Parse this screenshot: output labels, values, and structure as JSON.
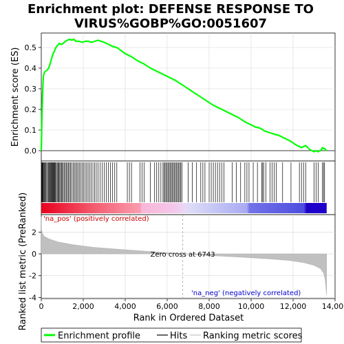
{
  "chart_data": {
    "type": "line",
    "title_lines": [
      "Enrichment plot: DEFENSE RESPONSE TO",
      "VIRUS%GOBP%GO:0051607"
    ],
    "xlabel": "Rank in Ordered Dataset",
    "ylabel_top": "Enrichment score (ES)",
    "ylabel_bottom": "Ranked list metric (PreRanked)",
    "x_range": [
      0,
      14000
    ],
    "x_ticks": [
      0,
      2000,
      4000,
      6000,
      8000,
      10000,
      12000,
      14000
    ],
    "x_tick_labels": [
      "0",
      "2,000",
      "4,000",
      "6,000",
      "8,000",
      "10,000",
      "12,000",
      "14,000"
    ],
    "es_range": [
      -0.05,
      0.57
    ],
    "es_ticks": [
      0.0,
      0.1,
      0.2,
      0.3,
      0.4,
      0.5
    ],
    "es_tick_labels": [
      "0.0",
      "0.1",
      "0.2",
      "0.3",
      "0.4",
      "0.5"
    ],
    "metric_range": [
      -4.1,
      3.6
    ],
    "metric_ticks": [
      -4,
      -2,
      0,
      2
    ],
    "metric_tick_labels": [
      "-4",
      "-2",
      "0",
      "2"
    ],
    "dataset_size": 13600,
    "zero_cross_rank": 6743,
    "zero_cross_label": "Zero cross at 6743",
    "pos_label": "'na_pos' (positively correlated)",
    "neg_label": "'na_neg' (negatively correlated)",
    "series": [
      {
        "name": "Enrichment profile",
        "color": "#00ff00",
        "x": [
          0,
          30,
          60,
          100,
          150,
          200,
          280,
          350,
          420,
          500,
          560,
          620,
          700,
          780,
          850,
          950,
          1050,
          1150,
          1250,
          1350,
          1450,
          1550,
          1650,
          1800,
          1950,
          2100,
          2250,
          2400,
          2550,
          2700,
          2850,
          3000,
          3200,
          3400,
          3600,
          3800,
          4000,
          4300,
          4600,
          4900,
          5200,
          5500,
          5800,
          6100,
          6400,
          6700,
          7000,
          7300,
          7600,
          7900,
          8200,
          8500,
          8800,
          9100,
          9400,
          9700,
          10000,
          10200,
          10400,
          10500,
          10650,
          10800,
          10950,
          11100,
          11300,
          11500,
          11700,
          11900,
          12100,
          12300,
          12400,
          12500,
          12600,
          12700,
          12800,
          12900,
          13000,
          13100,
          13200,
          13300,
          13350,
          13400,
          13450,
          13500,
          13550,
          13600
        ],
        "y": [
          0.0,
          0.15,
          0.27,
          0.36,
          0.38,
          0.385,
          0.39,
          0.4,
          0.42,
          0.45,
          0.47,
          0.48,
          0.5,
          0.51,
          0.52,
          0.515,
          0.52,
          0.53,
          0.535,
          0.54,
          0.535,
          0.54,
          0.53,
          0.53,
          0.525,
          0.53,
          0.53,
          0.525,
          0.53,
          0.535,
          0.53,
          0.525,
          0.515,
          0.505,
          0.5,
          0.485,
          0.47,
          0.455,
          0.435,
          0.42,
          0.4,
          0.385,
          0.37,
          0.355,
          0.34,
          0.32,
          0.3,
          0.28,
          0.26,
          0.24,
          0.22,
          0.205,
          0.19,
          0.175,
          0.16,
          0.14,
          0.125,
          0.115,
          0.11,
          0.105,
          0.095,
          0.09,
          0.085,
          0.08,
          0.075,
          0.065,
          0.055,
          0.045,
          0.03,
          0.02,
          0.015,
          0.02,
          0.025,
          0.015,
          0.005,
          0.0,
          -0.005,
          0.0,
          -0.005,
          0.0,
          0.005,
          0.015,
          0.01,
          0.01,
          0.005,
          0.0
        ]
      }
    ],
    "hits": [
      20,
      40,
      60,
      90,
      120,
      150,
      180,
      220,
      260,
      300,
      340,
      380,
      410,
      440,
      470,
      500,
      530,
      560,
      590,
      620,
      650,
      680,
      720,
      760,
      800,
      840,
      880,
      920,
      960,
      1000,
      1050,
      1100,
      1150,
      1200,
      1250,
      1300,
      1350,
      1400,
      1460,
      1520,
      1580,
      1640,
      1700,
      1760,
      1820,
      1880,
      1950,
      2020,
      2090,
      2160,
      2230,
      2300,
      2380,
      2460,
      2540,
      2620,
      2700,
      2800,
      2900,
      3000,
      3100,
      3200,
      3300,
      3400,
      3500,
      3600,
      4100,
      4200,
      4300,
      4700,
      4800,
      4900,
      5200,
      5400,
      5500,
      5600,
      5700,
      5800,
      5850,
      5900,
      5950,
      6000,
      6050,
      6100,
      6150,
      6200,
      6250,
      6300,
      6350,
      6400,
      6450,
      6500,
      6550,
      6600,
      6650,
      6700,
      7000,
      7200,
      7400,
      7600,
      7700,
      7800,
      8000,
      8100,
      8200,
      8300,
      8400,
      8500,
      8600,
      8700,
      9100,
      9300,
      9500,
      9700,
      9800,
      9900,
      10100,
      10300,
      10500,
      10550,
      10600,
      10700,
      10900,
      11000,
      11100,
      11200,
      11500,
      11900,
      12300,
      12400,
      12500,
      12600,
      13000,
      13100,
      13200,
      13400,
      13450,
      13500
    ],
    "metric_profile": [
      [
        0,
        3.4
      ],
      [
        10,
        2.3
      ],
      [
        50,
        1.9
      ],
      [
        150,
        1.6
      ],
      [
        400,
        1.35
      ],
      [
        800,
        1.1
      ],
      [
        1500,
        0.85
      ],
      [
        2500,
        0.6
      ],
      [
        4000,
        0.38
      ],
      [
        5500,
        0.18
      ],
      [
        6743,
        0.0
      ],
      [
        8000,
        -0.15
      ],
      [
        9500,
        -0.3
      ],
      [
        10800,
        -0.45
      ],
      [
        11800,
        -0.6
      ],
      [
        12500,
        -0.8
      ],
      [
        13000,
        -1.05
      ],
      [
        13300,
        -1.35
      ],
      [
        13450,
        -1.75
      ],
      [
        13520,
        -2.3
      ],
      [
        13560,
        -3.0
      ],
      [
        13600,
        -3.8
      ]
    ],
    "legend": {
      "items": [
        {
          "label": "Enrichment profile",
          "color": "#00ff00"
        },
        {
          "label": "Hits",
          "color": "#000000"
        },
        {
          "label": "Ranking metric scores",
          "color": "#c0c0c0"
        }
      ]
    }
  }
}
